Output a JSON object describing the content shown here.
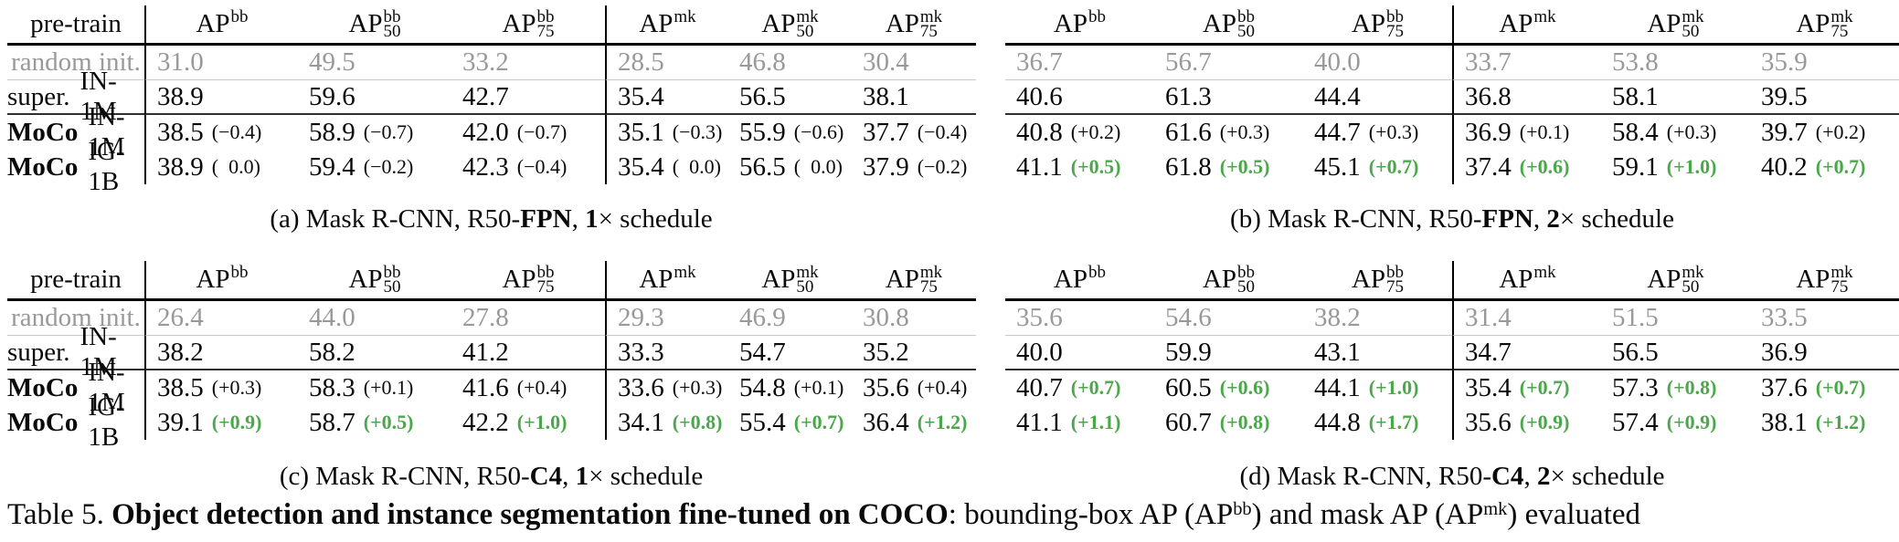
{
  "colors": {
    "green": "#4aa74a",
    "gray": "#999999",
    "text": "#0a0a0a"
  },
  "columns": {
    "label": "pre-train",
    "metrics": [
      {
        "base": "AP",
        "sup": "bb",
        "sub": ""
      },
      {
        "base": "AP",
        "sup": "bb",
        "sub": "50"
      },
      {
        "base": "AP",
        "sup": "bb",
        "sub": "75"
      },
      {
        "base": "AP",
        "sup": "mk",
        "sub": ""
      },
      {
        "base": "AP",
        "sup": "mk",
        "sub": "50"
      },
      {
        "base": "AP",
        "sup": "mk",
        "sub": "75"
      }
    ]
  },
  "row_labels": [
    {
      "name": "random init.",
      "dataset": "",
      "bold": false,
      "gray": true
    },
    {
      "name": "super.",
      "dataset": "IN-1M",
      "bold": false,
      "gray": false
    },
    {
      "name": "MoCo",
      "dataset": "IN-1M",
      "bold": true,
      "gray": false
    },
    {
      "name": "MoCo",
      "dataset": "IG-1B",
      "bold": true,
      "gray": false
    }
  ],
  "tables": [
    {
      "id": "a",
      "show_labels": true,
      "caption": [
        {
          "t": "(a) Mask R-CNN, R50-"
        },
        {
          "t": "FPN",
          "b": true
        },
        {
          "t": ", "
        },
        {
          "t": "1",
          "b": true
        },
        {
          "t": "× schedule"
        }
      ],
      "rows": [
        [
          [
            "31.0"
          ],
          [
            "49.5"
          ],
          [
            "33.2"
          ],
          [
            "28.5"
          ],
          [
            "46.8"
          ],
          [
            "30.4"
          ]
        ],
        [
          [
            "38.9"
          ],
          [
            "59.6"
          ],
          [
            "42.7"
          ],
          [
            "35.4"
          ],
          [
            "56.5"
          ],
          [
            "38.1"
          ]
        ],
        [
          [
            "38.5",
            "(−0.4)"
          ],
          [
            "58.9",
            "(−0.7)"
          ],
          [
            "42.0",
            "(−0.7)"
          ],
          [
            "35.1",
            "(−0.3)"
          ],
          [
            "55.9",
            "(−0.6)"
          ],
          [
            "37.7",
            "(−0.4)"
          ]
        ],
        [
          [
            "38.9",
            "(  0.0)"
          ],
          [
            "59.4",
            "(−0.2)"
          ],
          [
            "42.3",
            "(−0.4)"
          ],
          [
            "35.4",
            "(  0.0)"
          ],
          [
            "56.5",
            "(  0.0)"
          ],
          [
            "37.9",
            "(−0.2)"
          ]
        ]
      ]
    },
    {
      "id": "b",
      "show_labels": false,
      "caption": [
        {
          "t": "(b) Mask R-CNN, R50-"
        },
        {
          "t": "FPN",
          "b": true
        },
        {
          "t": ", "
        },
        {
          "t": "2",
          "b": true
        },
        {
          "t": "× schedule"
        }
      ],
      "rows": [
        [
          [
            "36.7"
          ],
          [
            "56.7"
          ],
          [
            "40.0"
          ],
          [
            "33.7"
          ],
          [
            "53.8"
          ],
          [
            "35.9"
          ]
        ],
        [
          [
            "40.6"
          ],
          [
            "61.3"
          ],
          [
            "44.4"
          ],
          [
            "36.8"
          ],
          [
            "58.1"
          ],
          [
            "39.5"
          ]
        ],
        [
          [
            "40.8",
            "(+0.2)"
          ],
          [
            "61.6",
            "(+0.3)"
          ],
          [
            "44.7",
            "(+0.3)"
          ],
          [
            "36.9",
            "(+0.1)"
          ],
          [
            "58.4",
            "(+0.3)"
          ],
          [
            "39.7",
            "(+0.2)"
          ]
        ],
        [
          [
            "41.1",
            "(+0.5)",
            "g"
          ],
          [
            "61.8",
            "(+0.5)",
            "g"
          ],
          [
            "45.1",
            "(+0.7)",
            "g"
          ],
          [
            "37.4",
            "(+0.6)",
            "g"
          ],
          [
            "59.1",
            "(+1.0)",
            "g"
          ],
          [
            "40.2",
            "(+0.7)",
            "g"
          ]
        ]
      ]
    },
    {
      "id": "c",
      "show_labels": true,
      "caption": [
        {
          "t": "(c) Mask R-CNN, R50-"
        },
        {
          "t": "C4",
          "b": true
        },
        {
          "t": ", "
        },
        {
          "t": "1",
          "b": true
        },
        {
          "t": "× schedule"
        }
      ],
      "rows": [
        [
          [
            "26.4"
          ],
          [
            "44.0"
          ],
          [
            "27.8"
          ],
          [
            "29.3"
          ],
          [
            "46.9"
          ],
          [
            "30.8"
          ]
        ],
        [
          [
            "38.2"
          ],
          [
            "58.2"
          ],
          [
            "41.2"
          ],
          [
            "33.3"
          ],
          [
            "54.7"
          ],
          [
            "35.2"
          ]
        ],
        [
          [
            "38.5",
            "(+0.3)"
          ],
          [
            "58.3",
            "(+0.1)"
          ],
          [
            "41.6",
            "(+0.4)"
          ],
          [
            "33.6",
            "(+0.3)"
          ],
          [
            "54.8",
            "(+0.1)"
          ],
          [
            "35.6",
            "(+0.4)"
          ]
        ],
        [
          [
            "39.1",
            "(+0.9)",
            "g"
          ],
          [
            "58.7",
            "(+0.5)",
            "g"
          ],
          [
            "42.2",
            "(+1.0)",
            "g"
          ],
          [
            "34.1",
            "(+0.8)",
            "g"
          ],
          [
            "55.4",
            "(+0.7)",
            "g"
          ],
          [
            "36.4",
            "(+1.2)",
            "g"
          ]
        ]
      ]
    },
    {
      "id": "d",
      "show_labels": false,
      "caption": [
        {
          "t": "(d) Mask R-CNN, R50-"
        },
        {
          "t": "C4",
          "b": true
        },
        {
          "t": ", "
        },
        {
          "t": "2",
          "b": true
        },
        {
          "t": "× schedule"
        }
      ],
      "rows": [
        [
          [
            "35.6"
          ],
          [
            "54.6"
          ],
          [
            "38.2"
          ],
          [
            "31.4"
          ],
          [
            "51.5"
          ],
          [
            "33.5"
          ]
        ],
        [
          [
            "40.0"
          ],
          [
            "59.9"
          ],
          [
            "43.1"
          ],
          [
            "34.7"
          ],
          [
            "56.5"
          ],
          [
            "36.9"
          ]
        ],
        [
          [
            "40.7",
            "(+0.7)",
            "g"
          ],
          [
            "60.5",
            "(+0.6)",
            "g"
          ],
          [
            "44.1",
            "(+1.0)",
            "g"
          ],
          [
            "35.4",
            "(+0.7)",
            "g"
          ],
          [
            "57.3",
            "(+0.8)",
            "g"
          ],
          [
            "37.6",
            "(+0.7)",
            "g"
          ]
        ],
        [
          [
            "41.1",
            "(+1.1)",
            "g"
          ],
          [
            "60.7",
            "(+0.8)",
            "g"
          ],
          [
            "44.8",
            "(+1.7)",
            "g"
          ],
          [
            "35.6",
            "(+0.9)",
            "g"
          ],
          [
            "57.4",
            "(+0.9)",
            "g"
          ],
          [
            "38.1",
            "(+1.2)",
            "g"
          ]
        ]
      ]
    }
  ],
  "main_caption": [
    {
      "t": "Table 5. "
    },
    {
      "t": "Object detection and instance segmentation fine-tuned on COCO",
      "b": true
    },
    {
      "t": ": bounding-box AP (AP"
    },
    {
      "t": "bb",
      "sup": true
    },
    {
      "t": ") and mask AP (AP"
    },
    {
      "t": "mk",
      "sup": true
    },
    {
      "t": ") evaluated"
    }
  ]
}
